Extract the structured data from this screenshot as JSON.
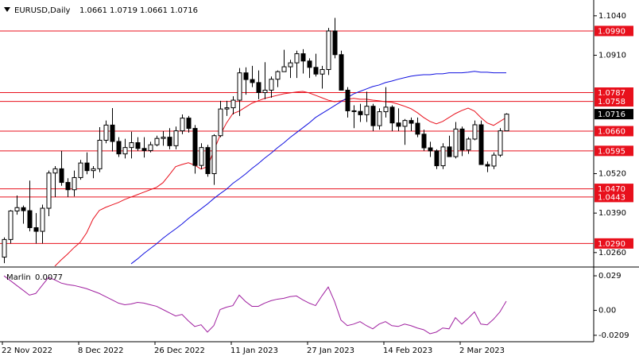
{
  "chart_data": [
    {
      "type": "candlestick",
      "title": "EURUSD,Daily",
      "categories": [
        "22 Nov 2022",
        null,
        null,
        null,
        null,
        null,
        null,
        null,
        null,
        null,
        null,
        null,
        "8 Dec 2022",
        null,
        null,
        null,
        null,
        null,
        null,
        null,
        null,
        null,
        null,
        null,
        "26 Dec 2022",
        null,
        null,
        null,
        null,
        null,
        null,
        null,
        null,
        null,
        null,
        null,
        "11 Jan 2023",
        null,
        null,
        null,
        null,
        null,
        null,
        null,
        null,
        null,
        null,
        null,
        "27 Jan 2023",
        null,
        null,
        null,
        null,
        null,
        null,
        null,
        null,
        null,
        null,
        null,
        "14 Feb 2023",
        null,
        null,
        null,
        null,
        null,
        null,
        null,
        null,
        null,
        null,
        null,
        "2 Mar 2023",
        null,
        null,
        null,
        null,
        null,
        null,
        null
      ],
      "open": [
        1.0245,
        1.0303,
        1.0397,
        1.0408,
        1.0398,
        1.0342,
        1.033,
        1.0406,
        1.0522,
        1.0536,
        1.0491,
        1.0467,
        1.0507,
        1.0555,
        1.053,
        1.0536,
        1.063,
        1.068,
        1.0626,
        1.0585,
        1.0606,
        1.0622,
        1.0603,
        1.0596,
        1.0615,
        1.0636,
        1.064,
        1.0612,
        1.0661,
        1.0703,
        1.0669,
        1.0547,
        1.0606,
        1.052,
        1.0645,
        1.0733,
        1.0737,
        1.0762,
        1.0852,
        1.083,
        1.082,
        1.0787,
        1.0795,
        1.0831,
        1.0856,
        1.0872,
        1.0885,
        1.0915,
        1.0891,
        1.087,
        1.0848,
        1.0863,
        1.099,
        1.0912,
        1.0795,
        1.0727,
        1.0725,
        1.0714,
        1.0742,
        1.0678,
        1.0724,
        1.0739,
        1.0687,
        1.0676,
        1.0695,
        1.0686,
        1.065,
        1.0605,
        1.0595,
        1.0546,
        1.0608,
        1.0576,
        1.0667,
        1.0598,
        1.0634,
        1.0681,
        1.055,
        1.0545,
        1.0581,
        1.0661
      ],
      "high": [
        1.031,
        1.04,
        1.0448,
        1.0415,
        1.0497,
        1.039,
        1.0418,
        1.053,
        1.0545,
        1.0595,
        1.0505,
        1.053,
        1.0565,
        1.059,
        1.0545,
        1.0673,
        1.0695,
        1.0736,
        1.064,
        1.0635,
        1.0658,
        1.064,
        1.064,
        1.0625,
        1.0645,
        1.066,
        1.067,
        1.0675,
        1.0715,
        1.071,
        1.068,
        1.062,
        1.0615,
        1.065,
        1.076,
        1.076,
        1.0775,
        1.0868,
        1.087,
        1.0875,
        1.086,
        1.0887,
        1.084,
        1.086,
        1.0928,
        1.0895,
        1.0925,
        1.093,
        1.09,
        1.0915,
        1.0875,
        1.1,
        1.1033,
        1.0925,
        1.0805,
        1.0745,
        1.075,
        1.079,
        1.075,
        1.0735,
        1.0805,
        1.0745,
        1.0735,
        1.07,
        1.0705,
        1.0705,
        1.0665,
        1.0625,
        1.06,
        1.062,
        1.0645,
        1.069,
        1.0675,
        1.064,
        1.0695,
        1.0695,
        1.056,
        1.059,
        1.067,
        1.0719
      ],
      "low": [
        1.0225,
        1.029,
        1.0385,
        1.0355,
        1.033,
        1.029,
        1.029,
        1.038,
        1.0443,
        1.048,
        1.0443,
        1.0445,
        1.05,
        1.0518,
        1.0505,
        1.0525,
        1.062,
        1.0593,
        1.0575,
        1.057,
        1.057,
        1.0595,
        1.0573,
        1.059,
        1.061,
        1.0612,
        1.06,
        1.06,
        1.065,
        1.0655,
        1.052,
        1.0535,
        1.051,
        1.0483,
        1.064,
        1.071,
        1.0715,
        1.071,
        1.078,
        1.0805,
        1.0765,
        1.0765,
        1.077,
        1.0805,
        1.0855,
        1.0835,
        1.0835,
        1.085,
        1.0835,
        1.084,
        1.08,
        1.0845,
        1.09,
        1.0795,
        1.0705,
        1.067,
        1.069,
        1.069,
        1.066,
        1.0665,
        1.0705,
        1.066,
        1.066,
        1.0615,
        1.066,
        1.064,
        1.0595,
        1.0575,
        1.0535,
        1.0535,
        1.0575,
        1.057,
        1.0578,
        1.0585,
        1.063,
        1.055,
        1.0525,
        1.0535,
        1.0575,
        1.0661
      ],
      "close": [
        1.0303,
        1.0397,
        1.0408,
        1.0398,
        1.0342,
        1.033,
        1.0406,
        1.0522,
        1.0536,
        1.0491,
        1.0467,
        1.0507,
        1.0555,
        1.053,
        1.0536,
        1.063,
        1.068,
        1.0626,
        1.0585,
        1.0606,
        1.0622,
        1.0603,
        1.0596,
        1.0615,
        1.0636,
        1.064,
        1.0612,
        1.0661,
        1.0703,
        1.0669,
        1.0547,
        1.0606,
        1.052,
        1.0645,
        1.0733,
        1.0737,
        1.0762,
        1.0852,
        1.083,
        1.082,
        1.0787,
        1.0795,
        1.0831,
        1.0856,
        1.0872,
        1.0885,
        1.0915,
        1.0891,
        1.087,
        1.0848,
        1.0863,
        1.099,
        1.0912,
        1.0795,
        1.0727,
        1.0725,
        1.0714,
        1.0742,
        1.0678,
        1.0724,
        1.0739,
        1.0687,
        1.0676,
        1.0695,
        1.0686,
        1.065,
        1.0605,
        1.0595,
        1.0546,
        1.0608,
        1.0576,
        1.0667,
        1.0598,
        1.0634,
        1.0681,
        1.055,
        1.0545,
        1.0581,
        1.0661,
        1.0716
      ],
      "lines": [
        {
          "color": "#e8101c",
          "values": [
            null,
            null,
            null,
            null,
            null,
            null,
            null,
            null,
            1.0215,
            1.0236,
            1.0255,
            1.0276,
            1.0294,
            1.0325,
            1.037,
            1.0399,
            1.0409,
            1.0417,
            1.0425,
            1.0435,
            1.0443,
            1.0451,
            1.0459,
            1.0467,
            1.0475,
            1.049,
            1.0516,
            1.0543,
            1.055,
            1.0556,
            1.0548,
            1.0535,
            1.0543,
            1.0595,
            1.0647,
            1.0687,
            1.0718,
            1.0726,
            1.0739,
            1.0752,
            1.076,
            1.0768,
            1.0773,
            1.0778,
            1.0783,
            1.0786,
            1.0789,
            1.0791,
            1.0786,
            1.0778,
            1.077,
            1.0762,
            1.0757,
            1.076,
            1.0765,
            1.0768,
            1.0765,
            1.0765,
            1.0762,
            1.076,
            1.0757,
            1.0755,
            1.0749,
            1.0742,
            1.0734,
            1.0721,
            1.0705,
            1.0692,
            1.0684,
            1.0692,
            1.0705,
            1.0718,
            1.0728,
            1.0736,
            1.0726,
            1.0705,
            1.0687,
            1.0679,
            1.0692,
            1.0705
          ]
        },
        {
          "color": "#1010e0",
          "values": [
            null,
            null,
            null,
            null,
            null,
            null,
            null,
            null,
            null,
            null,
            null,
            null,
            null,
            null,
            null,
            null,
            null,
            null,
            null,
            null,
            1.0223,
            1.0239,
            1.0257,
            1.0273,
            1.0289,
            1.0307,
            1.0323,
            1.0338,
            1.0354,
            1.0372,
            1.0388,
            1.0404,
            1.042,
            1.0438,
            1.0454,
            1.0469,
            1.0488,
            1.0503,
            1.0519,
            1.0537,
            1.0553,
            1.0571,
            1.0587,
            1.0605,
            1.0621,
            1.0639,
            1.0655,
            1.0671,
            1.0687,
            1.0705,
            1.0718,
            1.0731,
            1.0744,
            1.0757,
            1.077,
            1.0783,
            1.0791,
            1.0799,
            1.0807,
            1.0812,
            1.082,
            1.0825,
            1.0831,
            1.0836,
            1.0841,
            1.0844,
            1.0846,
            1.0846,
            1.0849,
            1.0849,
            1.0852,
            1.0852,
            1.0852,
            1.0854,
            1.0857,
            1.0854,
            1.0854,
            1.0852,
            1.0852,
            1.0852
          ]
        }
      ],
      "levels": {
        "color": "#e8101c",
        "values": [
          1.099,
          1.0787,
          1.0758,
          1.066,
          1.0595,
          1.047,
          1.0443,
          1.029
        ],
        "value_labels": [
          "1.0990",
          "1.0787",
          "1.0758",
          "1.0660",
          "1.0595",
          "1.0470",
          "1.0443",
          "1.0290"
        ]
      },
      "ylim": [
        1.0215,
        1.1092
      ],
      "yticks": [
        {
          "value": 1.104,
          "label": "1.1040"
        },
        {
          "value": 1.091,
          "label": "1.0910"
        },
        {
          "value": 1.052,
          "label": "1.0520"
        },
        {
          "value": 1.039,
          "label": "1.0390"
        },
        {
          "value": 1.026,
          "label": "1.0260"
        }
      ]
    },
    {
      "type": "line",
      "series": [
        {
          "name": "Marlin",
          "color": "#a020a0",
          "values": [
            0.029,
            0.025,
            0.0209,
            0.0169,
            0.0128,
            0.0142,
            0.0209,
            0.0276,
            0.0256,
            0.0229,
            0.0216,
            0.0209,
            0.0196,
            0.0182,
            0.0162,
            0.0142,
            0.0115,
            0.0088,
            0.0061,
            0.0047,
            0.0054,
            0.0067,
            0.0061,
            0.0047,
            0.0034,
            0.0007,
            -0.002,
            -0.0047,
            -0.0034,
            -0.0088,
            -0.0135,
            -0.0121,
            -0.0182,
            -0.0128,
            0.0007,
            0.0027,
            0.004,
            0.0128,
            0.0074,
            0.0034,
            0.0034,
            0.0061,
            0.0081,
            0.0094,
            0.0101,
            0.0115,
            0.0121,
            0.0088,
            0.0061,
            0.004,
            0.0121,
            0.0196,
            0.0074,
            -0.0081,
            -0.0128,
            -0.0115,
            -0.0094,
            -0.0128,
            -0.0155,
            -0.0115,
            -0.0094,
            -0.0128,
            -0.0135,
            -0.0115,
            -0.0128,
            -0.0148,
            -0.0162,
            -0.0196,
            -0.0182,
            -0.0148,
            -0.0155,
            -0.0061,
            -0.0115,
            -0.0067,
            -0.0013,
            -0.0115,
            -0.0121,
            -0.0074,
            -0.0013,
            0.0077
          ]
        }
      ],
      "ylim": [
        -0.0263,
        0.0357
      ],
      "yticks": [
        0.029,
        {
          "value": 0,
          "label": "0.00"
        },
        -0.0209
      ]
    }
  ]
}
